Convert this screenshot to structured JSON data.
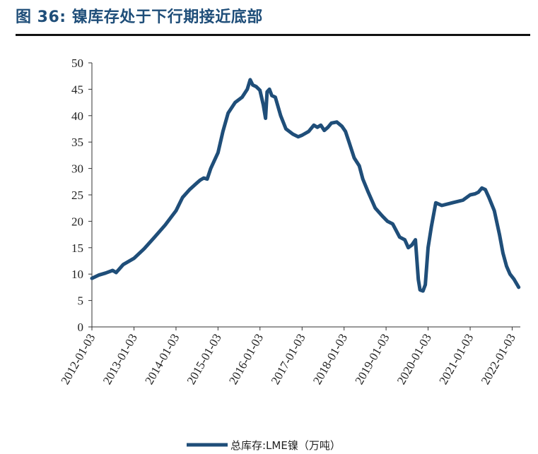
{
  "header": {
    "figure_title": "图 36:  镍库存处于下行期接近底部"
  },
  "chart_data": {
    "type": "line",
    "title": "",
    "xlabel": "",
    "ylabel": "",
    "ylim": [
      0,
      50
    ],
    "y_ticks": [
      "0",
      "5",
      "10",
      "15",
      "20",
      "25",
      "30",
      "35",
      "40",
      "45",
      "50"
    ],
    "x_ticks": [
      "2012-01-03",
      "2013-01-03",
      "2014-01-03",
      "2015-01-03",
      "2016-01-03",
      "2017-01-03",
      "2018-01-03",
      "2019-01-03",
      "2020-01-03",
      "2021-01-03",
      "2022-01-03"
    ],
    "x_range": [
      "2012-01-03",
      "2022-03-15"
    ],
    "legend_position": "bottom",
    "series": [
      {
        "name": "总库存:LME镍（万吨）",
        "color": "#1f4e79",
        "points": [
          [
            "2012-01-03",
            9.2
          ],
          [
            "2012-03-01",
            9.8
          ],
          [
            "2012-05-01",
            10.2
          ],
          [
            "2012-07-01",
            10.7
          ],
          [
            "2012-08-01",
            10.3
          ],
          [
            "2012-10-01",
            11.8
          ],
          [
            "2013-01-03",
            13.0
          ],
          [
            "2013-04-01",
            14.8
          ],
          [
            "2013-07-01",
            17.0
          ],
          [
            "2013-10-01",
            19.3
          ],
          [
            "2014-01-03",
            22.0
          ],
          [
            "2014-03-01",
            24.5
          ],
          [
            "2014-05-01",
            26.0
          ],
          [
            "2014-07-01",
            27.2
          ],
          [
            "2014-08-01",
            27.8
          ],
          [
            "2014-09-01",
            28.2
          ],
          [
            "2014-10-01",
            28.0
          ],
          [
            "2014-11-01",
            30.0
          ],
          [
            "2015-01-03",
            33.0
          ],
          [
            "2015-02-15",
            37.0
          ],
          [
            "2015-04-01",
            40.5
          ],
          [
            "2015-06-01",
            42.5
          ],
          [
            "2015-08-01",
            43.5
          ],
          [
            "2015-09-15",
            45.0
          ],
          [
            "2015-10-10",
            46.8
          ],
          [
            "2015-11-01",
            45.8
          ],
          [
            "2015-12-01",
            45.5
          ],
          [
            "2016-01-03",
            44.8
          ],
          [
            "2016-02-01",
            42.0
          ],
          [
            "2016-02-20",
            39.5
          ],
          [
            "2016-03-05",
            44.5
          ],
          [
            "2016-03-25",
            45.0
          ],
          [
            "2016-04-15",
            43.8
          ],
          [
            "2016-05-15",
            43.5
          ],
          [
            "2016-07-01",
            40.0
          ],
          [
            "2016-08-15",
            37.5
          ],
          [
            "2016-10-15",
            36.5
          ],
          [
            "2016-12-01",
            36.0
          ],
          [
            "2017-01-03",
            36.3
          ],
          [
            "2017-03-01",
            37.0
          ],
          [
            "2017-04-15",
            38.2
          ],
          [
            "2017-05-15",
            37.8
          ],
          [
            "2017-06-15",
            38.2
          ],
          [
            "2017-07-15",
            37.2
          ],
          [
            "2017-08-15",
            37.8
          ],
          [
            "2017-09-15",
            38.6
          ],
          [
            "2017-11-01",
            38.8
          ],
          [
            "2017-12-15",
            38.0
          ],
          [
            "2018-01-15",
            37.0
          ],
          [
            "2018-02-15",
            35.0
          ],
          [
            "2018-04-01",
            32.0
          ],
          [
            "2018-05-15",
            30.5
          ],
          [
            "2018-06-15",
            28.0
          ],
          [
            "2018-08-01",
            25.5
          ],
          [
            "2018-10-01",
            22.5
          ],
          [
            "2018-12-01",
            21.0
          ],
          [
            "2019-01-15",
            20.0
          ],
          [
            "2019-03-01",
            19.5
          ],
          [
            "2019-05-01",
            17.0
          ],
          [
            "2019-06-15",
            16.5
          ],
          [
            "2019-07-15",
            15.0
          ],
          [
            "2019-08-15",
            15.5
          ],
          [
            "2019-09-15",
            16.5
          ],
          [
            "2019-10-10",
            9.0
          ],
          [
            "2019-10-25",
            7.0
          ],
          [
            "2019-11-20",
            6.8
          ],
          [
            "2019-12-10",
            8.0
          ],
          [
            "2020-01-03",
            15.0
          ],
          [
            "2020-02-01",
            19.0
          ],
          [
            "2020-03-10",
            23.5
          ],
          [
            "2020-05-01",
            23.0
          ],
          [
            "2020-08-01",
            23.5
          ],
          [
            "2020-11-01",
            24.0
          ],
          [
            "2021-01-03",
            25.0
          ],
          [
            "2021-02-15",
            25.2
          ],
          [
            "2021-03-15",
            25.5
          ],
          [
            "2021-04-15",
            26.3
          ],
          [
            "2021-05-15",
            26.0
          ],
          [
            "2021-06-15",
            24.5
          ],
          [
            "2021-08-01",
            22.0
          ],
          [
            "2021-09-15",
            17.5
          ],
          [
            "2021-10-15",
            14.0
          ],
          [
            "2021-11-15",
            11.5
          ],
          [
            "2021-12-15",
            10.0
          ],
          [
            "2022-01-20",
            9.0
          ],
          [
            "2022-03-01",
            7.5
          ]
        ]
      }
    ]
  }
}
